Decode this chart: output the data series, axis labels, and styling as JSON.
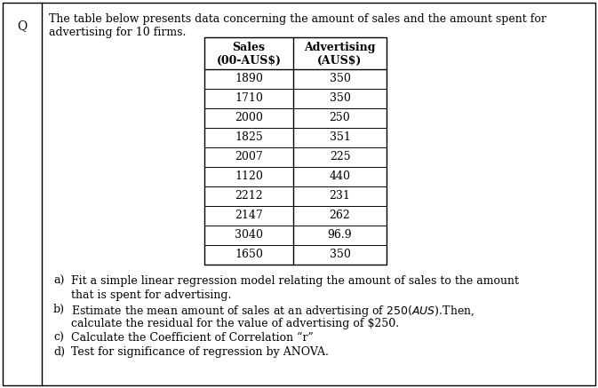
{
  "Q_label": "Q",
  "intro_text_line1": "The table below presents data concerning the amount of sales and the amount spent for",
  "intro_text_line2": "advertising for 10 firms.",
  "col1_header_line1": "Sales",
  "col1_header_line2": "(00-AUS$)",
  "col2_header_line1": "Advertising",
  "col2_header_line2": "(AUS$)",
  "sales": [
    1890,
    1710,
    2000,
    1825,
    2007,
    1120,
    2212,
    2147,
    3040,
    1650
  ],
  "advertising": [
    "350",
    "350",
    "250",
    "351",
    "225",
    "440",
    "231",
    "262",
    "96.9",
    "350"
  ],
  "q_lines": [
    [
      "a)",
      "Fit a simple linear regression model relating the amount of sales to the amount"
    ],
    [
      "",
      "that is spent for advertising."
    ],
    [
      "b)",
      "Estimate the mean amount of sales at an advertising of $250 (AUS$).Then,"
    ],
    [
      "",
      "calculate the residual for the value of advertising of $250."
    ],
    [
      "c)",
      "Calculate the Coefficient of Correlation “r”"
    ],
    [
      "d)",
      "Test for significance of regression by ANOVA."
    ]
  ],
  "font_size": 9.0,
  "background_color": "#ffffff"
}
